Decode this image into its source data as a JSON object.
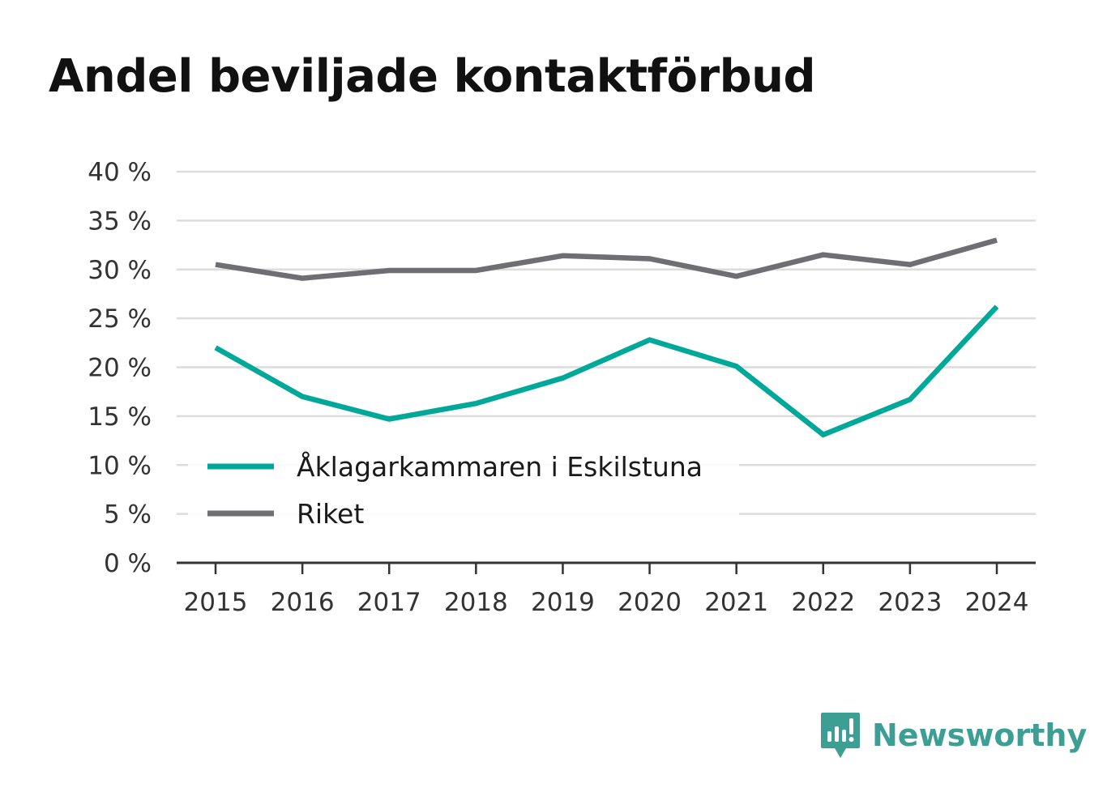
{
  "chart_data": {
    "type": "line",
    "title": "Andel beviljade kontaktförbud",
    "xlabel": "",
    "ylabel": "",
    "x": [
      "2015",
      "2016",
      "2017",
      "2018",
      "2019",
      "2020",
      "2021",
      "2022",
      "2023",
      "2024"
    ],
    "yticks": [
      "0 %",
      "5 %",
      "10 %",
      "15 %",
      "20 %",
      "25 %",
      "30 %",
      "35 %",
      "40 %"
    ],
    "ylim": [
      0,
      40
    ],
    "grid": true,
    "legend_position": "bottom-left",
    "series": [
      {
        "name": "Åklagarkammaren i Eskilstuna",
        "color": "#00a89a",
        "values": [
          22.0,
          17.0,
          14.7,
          16.3,
          18.9,
          22.8,
          20.1,
          13.1,
          16.7,
          26.2
        ]
      },
      {
        "name": "Riket",
        "color": "#6e6e73",
        "values": [
          30.5,
          29.1,
          29.9,
          29.9,
          31.4,
          31.1,
          29.3,
          31.5,
          30.5,
          33.0
        ]
      }
    ]
  },
  "brand": {
    "name": "Newsworthy",
    "icon": "newsworthy-logo-icon",
    "color": "#3d9e94"
  }
}
